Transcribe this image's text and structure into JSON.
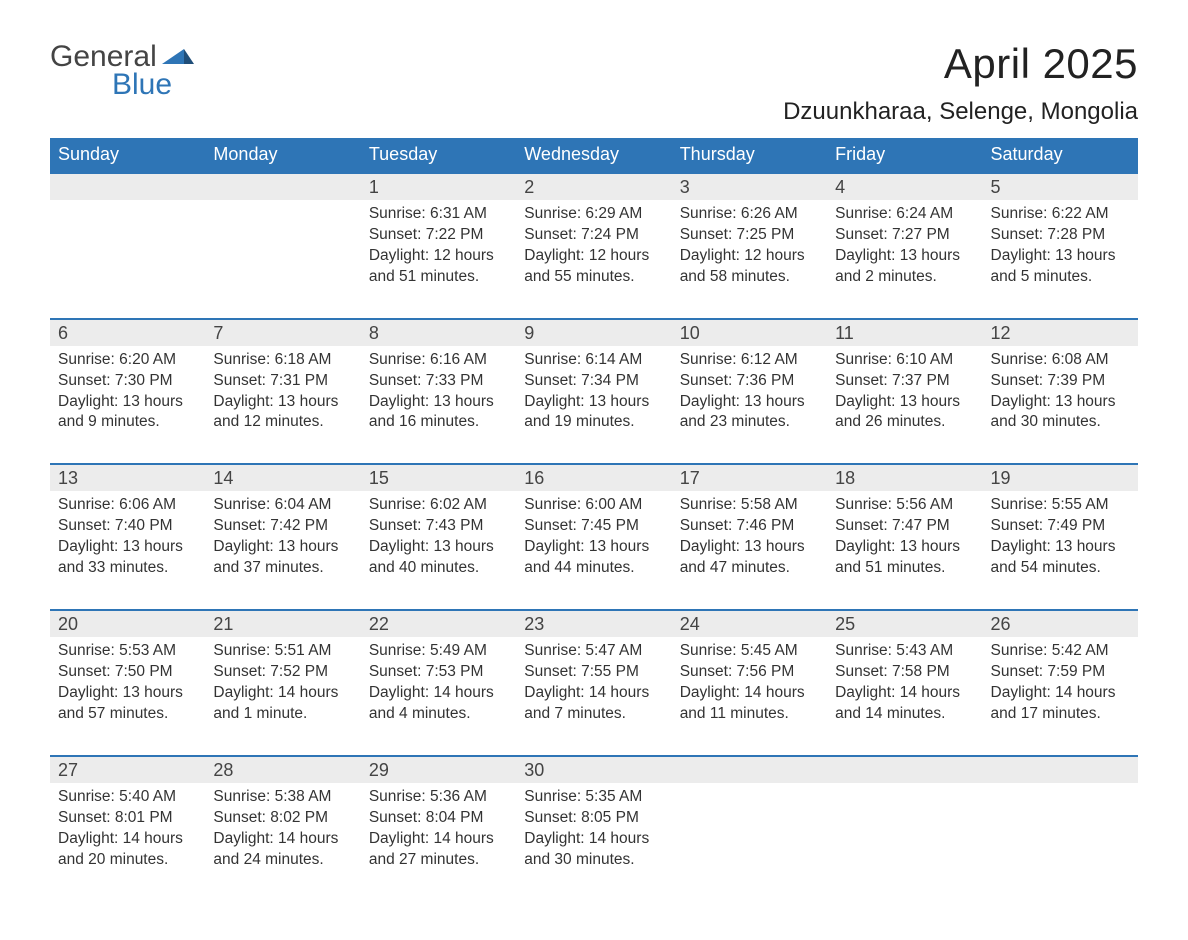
{
  "logo": {
    "text_general": "General",
    "text_blue": "Blue",
    "flag_color": "#2e75b6"
  },
  "title": "April 2025",
  "location": "Dzuunkharaa, Selenge, Mongolia",
  "colors": {
    "header_bg": "#2e75b6",
    "header_text": "#ffffff",
    "daynum_bg": "#ececec",
    "daynum_border_top": "#2e75b6",
    "body_text": "#333333",
    "page_bg": "#ffffff"
  },
  "day_headers": [
    "Sunday",
    "Monday",
    "Tuesday",
    "Wednesday",
    "Thursday",
    "Friday",
    "Saturday"
  ],
  "weeks": [
    {
      "days": [
        {
          "num": "",
          "sunrise": "",
          "sunset": "",
          "daylight": ""
        },
        {
          "num": "",
          "sunrise": "",
          "sunset": "",
          "daylight": ""
        },
        {
          "num": "1",
          "sunrise": "Sunrise: 6:31 AM",
          "sunset": "Sunset: 7:22 PM",
          "daylight": "Daylight: 12 hours and 51 minutes."
        },
        {
          "num": "2",
          "sunrise": "Sunrise: 6:29 AM",
          "sunset": "Sunset: 7:24 PM",
          "daylight": "Daylight: 12 hours and 55 minutes."
        },
        {
          "num": "3",
          "sunrise": "Sunrise: 6:26 AM",
          "sunset": "Sunset: 7:25 PM",
          "daylight": "Daylight: 12 hours and 58 minutes."
        },
        {
          "num": "4",
          "sunrise": "Sunrise: 6:24 AM",
          "sunset": "Sunset: 7:27 PM",
          "daylight": "Daylight: 13 hours and 2 minutes."
        },
        {
          "num": "5",
          "sunrise": "Sunrise: 6:22 AM",
          "sunset": "Sunset: 7:28 PM",
          "daylight": "Daylight: 13 hours and 5 minutes."
        }
      ]
    },
    {
      "days": [
        {
          "num": "6",
          "sunrise": "Sunrise: 6:20 AM",
          "sunset": "Sunset: 7:30 PM",
          "daylight": "Daylight: 13 hours and 9 minutes."
        },
        {
          "num": "7",
          "sunrise": "Sunrise: 6:18 AM",
          "sunset": "Sunset: 7:31 PM",
          "daylight": "Daylight: 13 hours and 12 minutes."
        },
        {
          "num": "8",
          "sunrise": "Sunrise: 6:16 AM",
          "sunset": "Sunset: 7:33 PM",
          "daylight": "Daylight: 13 hours and 16 minutes."
        },
        {
          "num": "9",
          "sunrise": "Sunrise: 6:14 AM",
          "sunset": "Sunset: 7:34 PM",
          "daylight": "Daylight: 13 hours and 19 minutes."
        },
        {
          "num": "10",
          "sunrise": "Sunrise: 6:12 AM",
          "sunset": "Sunset: 7:36 PM",
          "daylight": "Daylight: 13 hours and 23 minutes."
        },
        {
          "num": "11",
          "sunrise": "Sunrise: 6:10 AM",
          "sunset": "Sunset: 7:37 PM",
          "daylight": "Daylight: 13 hours and 26 minutes."
        },
        {
          "num": "12",
          "sunrise": "Sunrise: 6:08 AM",
          "sunset": "Sunset: 7:39 PM",
          "daylight": "Daylight: 13 hours and 30 minutes."
        }
      ]
    },
    {
      "days": [
        {
          "num": "13",
          "sunrise": "Sunrise: 6:06 AM",
          "sunset": "Sunset: 7:40 PM",
          "daylight": "Daylight: 13 hours and 33 minutes."
        },
        {
          "num": "14",
          "sunrise": "Sunrise: 6:04 AM",
          "sunset": "Sunset: 7:42 PM",
          "daylight": "Daylight: 13 hours and 37 minutes."
        },
        {
          "num": "15",
          "sunrise": "Sunrise: 6:02 AM",
          "sunset": "Sunset: 7:43 PM",
          "daylight": "Daylight: 13 hours and 40 minutes."
        },
        {
          "num": "16",
          "sunrise": "Sunrise: 6:00 AM",
          "sunset": "Sunset: 7:45 PM",
          "daylight": "Daylight: 13 hours and 44 minutes."
        },
        {
          "num": "17",
          "sunrise": "Sunrise: 5:58 AM",
          "sunset": "Sunset: 7:46 PM",
          "daylight": "Daylight: 13 hours and 47 minutes."
        },
        {
          "num": "18",
          "sunrise": "Sunrise: 5:56 AM",
          "sunset": "Sunset: 7:47 PM",
          "daylight": "Daylight: 13 hours and 51 minutes."
        },
        {
          "num": "19",
          "sunrise": "Sunrise: 5:55 AM",
          "sunset": "Sunset: 7:49 PM",
          "daylight": "Daylight: 13 hours and 54 minutes."
        }
      ]
    },
    {
      "days": [
        {
          "num": "20",
          "sunrise": "Sunrise: 5:53 AM",
          "sunset": "Sunset: 7:50 PM",
          "daylight": "Daylight: 13 hours and 57 minutes."
        },
        {
          "num": "21",
          "sunrise": "Sunrise: 5:51 AM",
          "sunset": "Sunset: 7:52 PM",
          "daylight": "Daylight: 14 hours and 1 minute."
        },
        {
          "num": "22",
          "sunrise": "Sunrise: 5:49 AM",
          "sunset": "Sunset: 7:53 PM",
          "daylight": "Daylight: 14 hours and 4 minutes."
        },
        {
          "num": "23",
          "sunrise": "Sunrise: 5:47 AM",
          "sunset": "Sunset: 7:55 PM",
          "daylight": "Daylight: 14 hours and 7 minutes."
        },
        {
          "num": "24",
          "sunrise": "Sunrise: 5:45 AM",
          "sunset": "Sunset: 7:56 PM",
          "daylight": "Daylight: 14 hours and 11 minutes."
        },
        {
          "num": "25",
          "sunrise": "Sunrise: 5:43 AM",
          "sunset": "Sunset: 7:58 PM",
          "daylight": "Daylight: 14 hours and 14 minutes."
        },
        {
          "num": "26",
          "sunrise": "Sunrise: 5:42 AM",
          "sunset": "Sunset: 7:59 PM",
          "daylight": "Daylight: 14 hours and 17 minutes."
        }
      ]
    },
    {
      "days": [
        {
          "num": "27",
          "sunrise": "Sunrise: 5:40 AM",
          "sunset": "Sunset: 8:01 PM",
          "daylight": "Daylight: 14 hours and 20 minutes."
        },
        {
          "num": "28",
          "sunrise": "Sunrise: 5:38 AM",
          "sunset": "Sunset: 8:02 PM",
          "daylight": "Daylight: 14 hours and 24 minutes."
        },
        {
          "num": "29",
          "sunrise": "Sunrise: 5:36 AM",
          "sunset": "Sunset: 8:04 PM",
          "daylight": "Daylight: 14 hours and 27 minutes."
        },
        {
          "num": "30",
          "sunrise": "Sunrise: 5:35 AM",
          "sunset": "Sunset: 8:05 PM",
          "daylight": "Daylight: 14 hours and 30 minutes."
        },
        {
          "num": "",
          "sunrise": "",
          "sunset": "",
          "daylight": ""
        },
        {
          "num": "",
          "sunrise": "",
          "sunset": "",
          "daylight": ""
        },
        {
          "num": "",
          "sunrise": "",
          "sunset": "",
          "daylight": ""
        }
      ]
    }
  ]
}
